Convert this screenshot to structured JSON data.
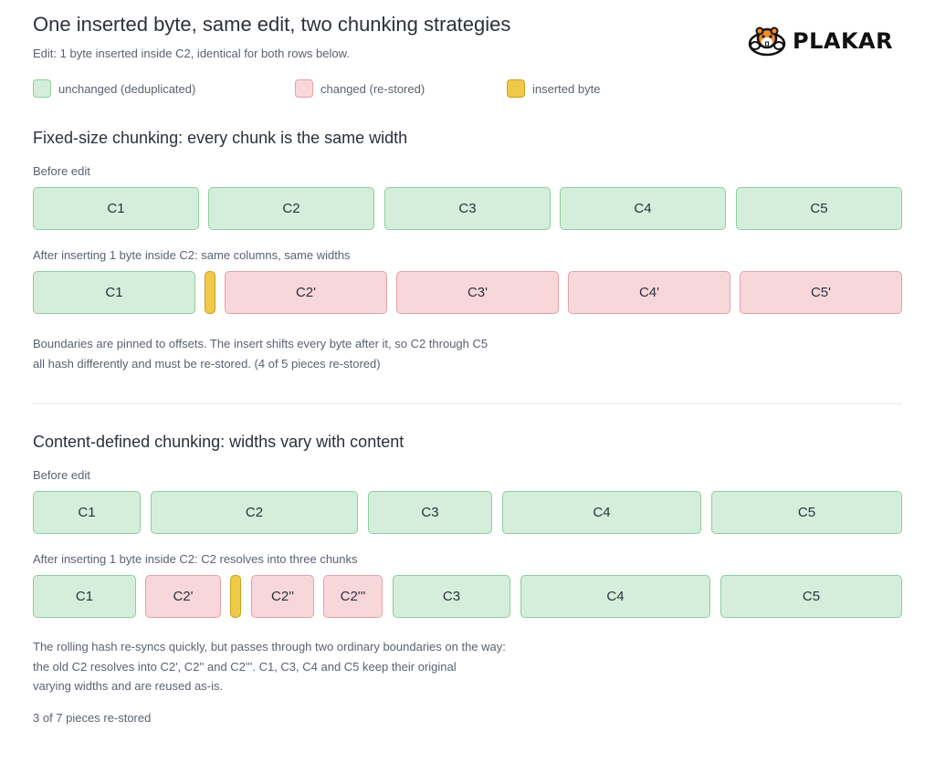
{
  "header": {
    "title": "One inserted byte, same edit, two chunking strategies",
    "subtitle": "Edit: 1 byte inserted inside C2, identical for both rows below."
  },
  "logo": {
    "text": "PLAKAR",
    "icon": "hamster-icon"
  },
  "legend": {
    "unchanged": "unchanged (deduplicated)",
    "changed": "changed (re-stored)",
    "inserted": "inserted byte"
  },
  "colors": {
    "unchanged_fill": "#d5eedb",
    "unchanged_border": "#8bcf9b",
    "changed_fill": "#f8d7da",
    "changed_border": "#e4a1a7",
    "inserted_fill": "#f1c94a",
    "inserted_border": "#c9a21e"
  },
  "fixed": {
    "title": "Fixed-size chunking: every chunk is the same width",
    "before_label": "Before edit",
    "before_chunks": [
      {
        "label": "C1",
        "state": "unchanged"
      },
      {
        "label": "C2",
        "state": "unchanged"
      },
      {
        "label": "C3",
        "state": "unchanged"
      },
      {
        "label": "C4",
        "state": "unchanged"
      },
      {
        "label": "C5",
        "state": "unchanged"
      }
    ],
    "after_label": "After inserting 1 byte inside C2: same columns, same widths",
    "after_chunks": [
      {
        "label": "C1",
        "state": "unchanged"
      },
      {
        "label": "",
        "state": "inserted"
      },
      {
        "label": "C2'",
        "state": "changed"
      },
      {
        "label": "C3'",
        "state": "changed"
      },
      {
        "label": "C4'",
        "state": "changed"
      },
      {
        "label": "C5'",
        "state": "changed"
      }
    ],
    "note_line1": "Boundaries are pinned to offsets. The insert shifts every byte after it, so C2 through C5",
    "note_line2": "all hash differently and must be re-stored. (4 of 5 pieces re-stored)"
  },
  "cdc": {
    "title": "Content-defined chunking: widths vary with content",
    "before_label": "Before edit",
    "before_chunks": [
      {
        "label": "C1",
        "state": "unchanged"
      },
      {
        "label": "C2",
        "state": "unchanged"
      },
      {
        "label": "C3",
        "state": "unchanged"
      },
      {
        "label": "C4",
        "state": "unchanged"
      },
      {
        "label": "C5",
        "state": "unchanged"
      }
    ],
    "after_label": "After inserting 1 byte inside C2: C2 resolves into three chunks",
    "after_chunks": [
      {
        "label": "C1",
        "state": "unchanged"
      },
      {
        "label": "C2'",
        "state": "changed"
      },
      {
        "label": "",
        "state": "inserted"
      },
      {
        "label": "C2''",
        "state": "changed"
      },
      {
        "label": "C2'''",
        "state": "changed"
      },
      {
        "label": "C3",
        "state": "unchanged"
      },
      {
        "label": "C4",
        "state": "unchanged"
      },
      {
        "label": "C5",
        "state": "unchanged"
      }
    ],
    "note_line1": "The rolling hash re-syncs quickly, but passes through two ordinary boundaries on the way:",
    "note_line2": "the old C2 resolves into C2', C2'' and C2'''. C1, C3, C4 and C5 keep their original",
    "note_line3": "varying widths and are reused as-is.",
    "summary": "3 of 7 pieces re-stored"
  }
}
